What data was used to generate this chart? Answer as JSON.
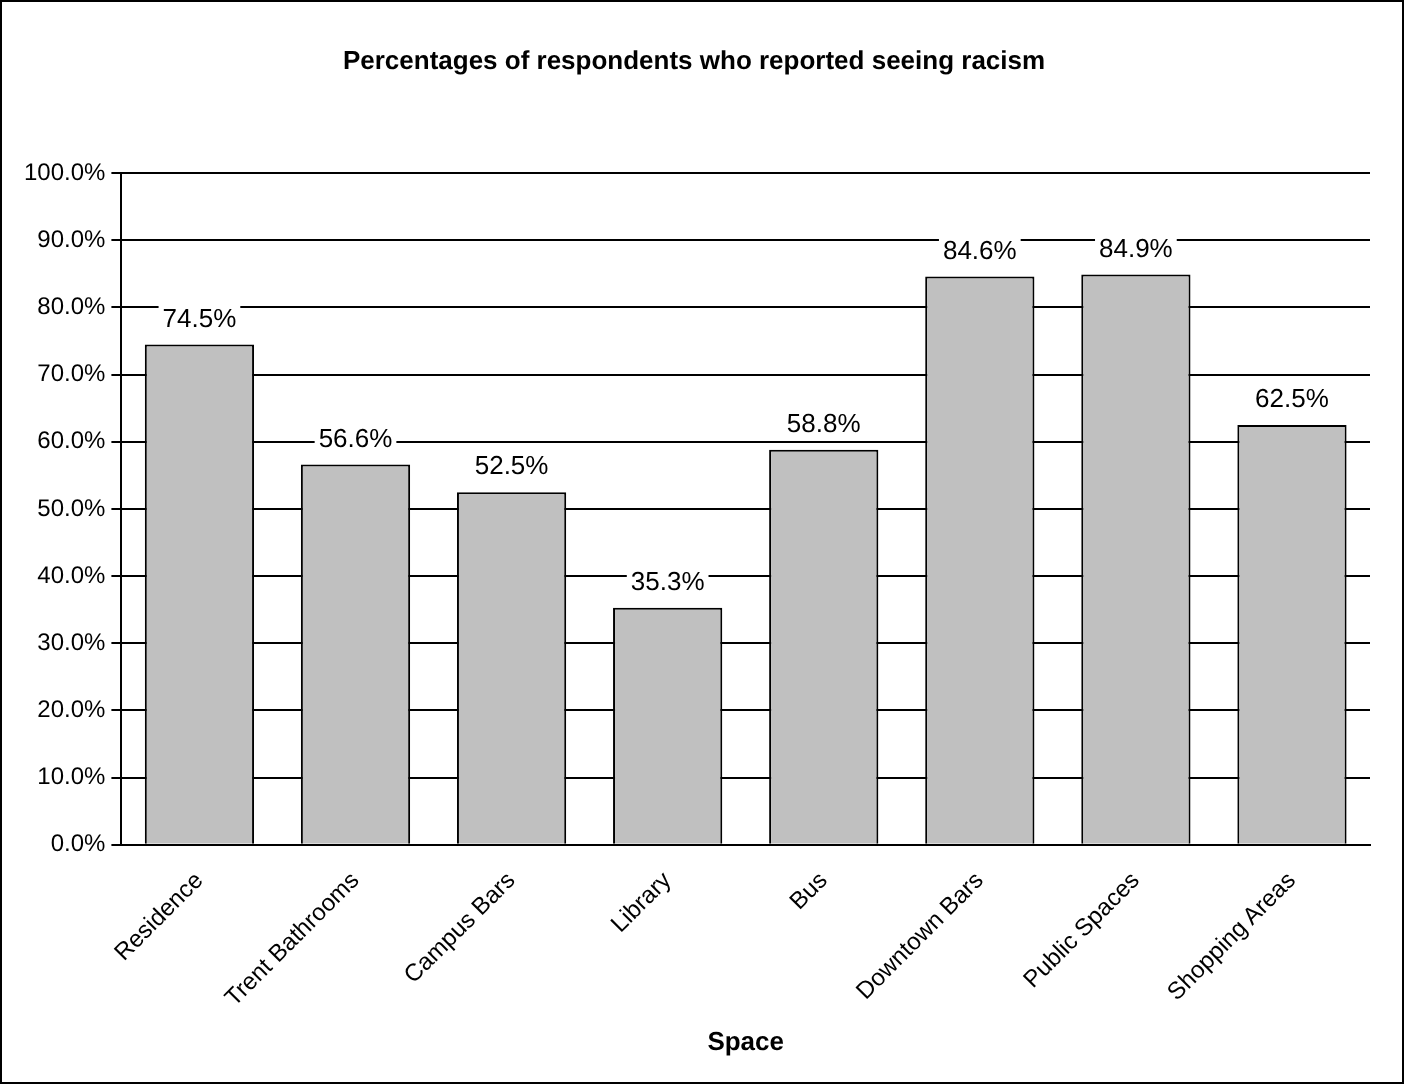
{
  "chart_data": {
    "type": "bar",
    "title": "Percentages of respondents who reported seeing racism",
    "xlabel": "Space",
    "categories": [
      "Residence",
      "Trent Bathrooms",
      "Campus Bars",
      "Library",
      "Bus",
      "Downtown Bars",
      "Public Spaces",
      "Shopping Areas"
    ],
    "series": [
      {
        "color": "#c0c0c0",
        "values": [
          74.5,
          56.6,
          52.5,
          35.3,
          58.8,
          84.6,
          84.9,
          62.5
        ],
        "value_labels": [
          "74.5%",
          "56.6%",
          "52.5%",
          "35.3%",
          "58.8%",
          "84.6%",
          "84.9%",
          "62.5%"
        ]
      }
    ],
    "ylim": [
      0,
      100
    ],
    "yticks": [
      {
        "value": 0,
        "label": "0.0%"
      },
      {
        "value": 10,
        "label": "10.0%"
      },
      {
        "value": 20,
        "label": "20.0%"
      },
      {
        "value": 30,
        "label": "30.0%"
      },
      {
        "value": 40,
        "label": "40.0%"
      },
      {
        "value": 50,
        "label": "50.0%"
      },
      {
        "value": 60,
        "label": "60.0%"
      },
      {
        "value": 70,
        "label": "70.0%"
      },
      {
        "value": 80,
        "label": "80.0%"
      },
      {
        "value": 90,
        "label": "90.0%"
      },
      {
        "value": 100,
        "label": "100.0%"
      }
    ],
    "grid": "y",
    "legend": false
  }
}
